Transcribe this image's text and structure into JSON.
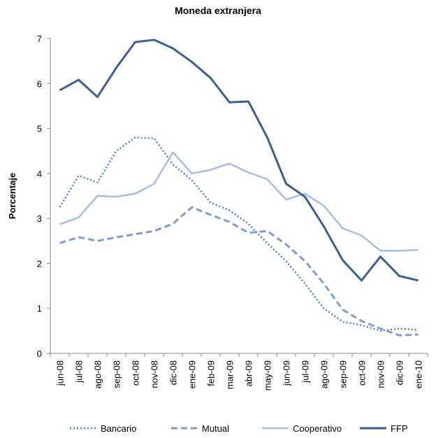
{
  "chart_data": {
    "type": "line",
    "title": "Moneda extranjera",
    "y_label": "Porcentaje",
    "categories": [
      "jun-08",
      "jul-08",
      "ago-08",
      "sep-08",
      "oct-08",
      "nov-08",
      "dic-08",
      "ene-09",
      "feb-09",
      "mar-09",
      "abr-09",
      "may-09",
      "jun-09",
      "jul-09",
      "ago-09",
      "sep-09",
      "oct-09",
      "nov-09",
      "dic-09",
      "ene-10"
    ],
    "series": [
      {
        "name": "Bancario",
        "color": "#4f7fbd",
        "dash": "dotted",
        "values": [
          3.25,
          3.95,
          3.8,
          4.5,
          4.8,
          4.78,
          4.2,
          3.85,
          3.35,
          3.18,
          2.88,
          2.45,
          2.05,
          1.55,
          1.0,
          0.7,
          0.63,
          0.5,
          0.55,
          0.52
        ]
      },
      {
        "name": "Mutual",
        "color": "#7e9ccf",
        "dash": "dashed",
        "values": [
          2.45,
          2.58,
          2.5,
          2.58,
          2.65,
          2.72,
          2.88,
          3.25,
          3.08,
          2.92,
          2.68,
          2.72,
          2.42,
          2.05,
          1.55,
          0.97,
          0.72,
          0.55,
          0.4,
          0.42
        ]
      },
      {
        "name": "Cooperativo",
        "color": "#a7bde0",
        "dash": "solid",
        "values": [
          2.87,
          3.02,
          3.5,
          3.48,
          3.55,
          3.77,
          4.47,
          4.0,
          4.08,
          4.22,
          4.02,
          3.87,
          3.42,
          3.55,
          3.28,
          2.78,
          2.62,
          2.28,
          2.28,
          2.3
        ]
      },
      {
        "name": "FFP",
        "color": "#3a5f91",
        "dash": "solid",
        "values": [
          5.85,
          6.08,
          5.7,
          6.35,
          6.92,
          6.97,
          6.78,
          6.48,
          6.12,
          5.58,
          5.6,
          4.8,
          3.77,
          3.48,
          2.82,
          2.07,
          1.62,
          2.15,
          1.72,
          1.62
        ]
      }
    ],
    "ylim": [
      0,
      7
    ],
    "yticks": [
      0,
      1,
      2,
      3,
      4,
      5,
      6,
      7
    ],
    "grid": false,
    "legend": "bottom"
  }
}
